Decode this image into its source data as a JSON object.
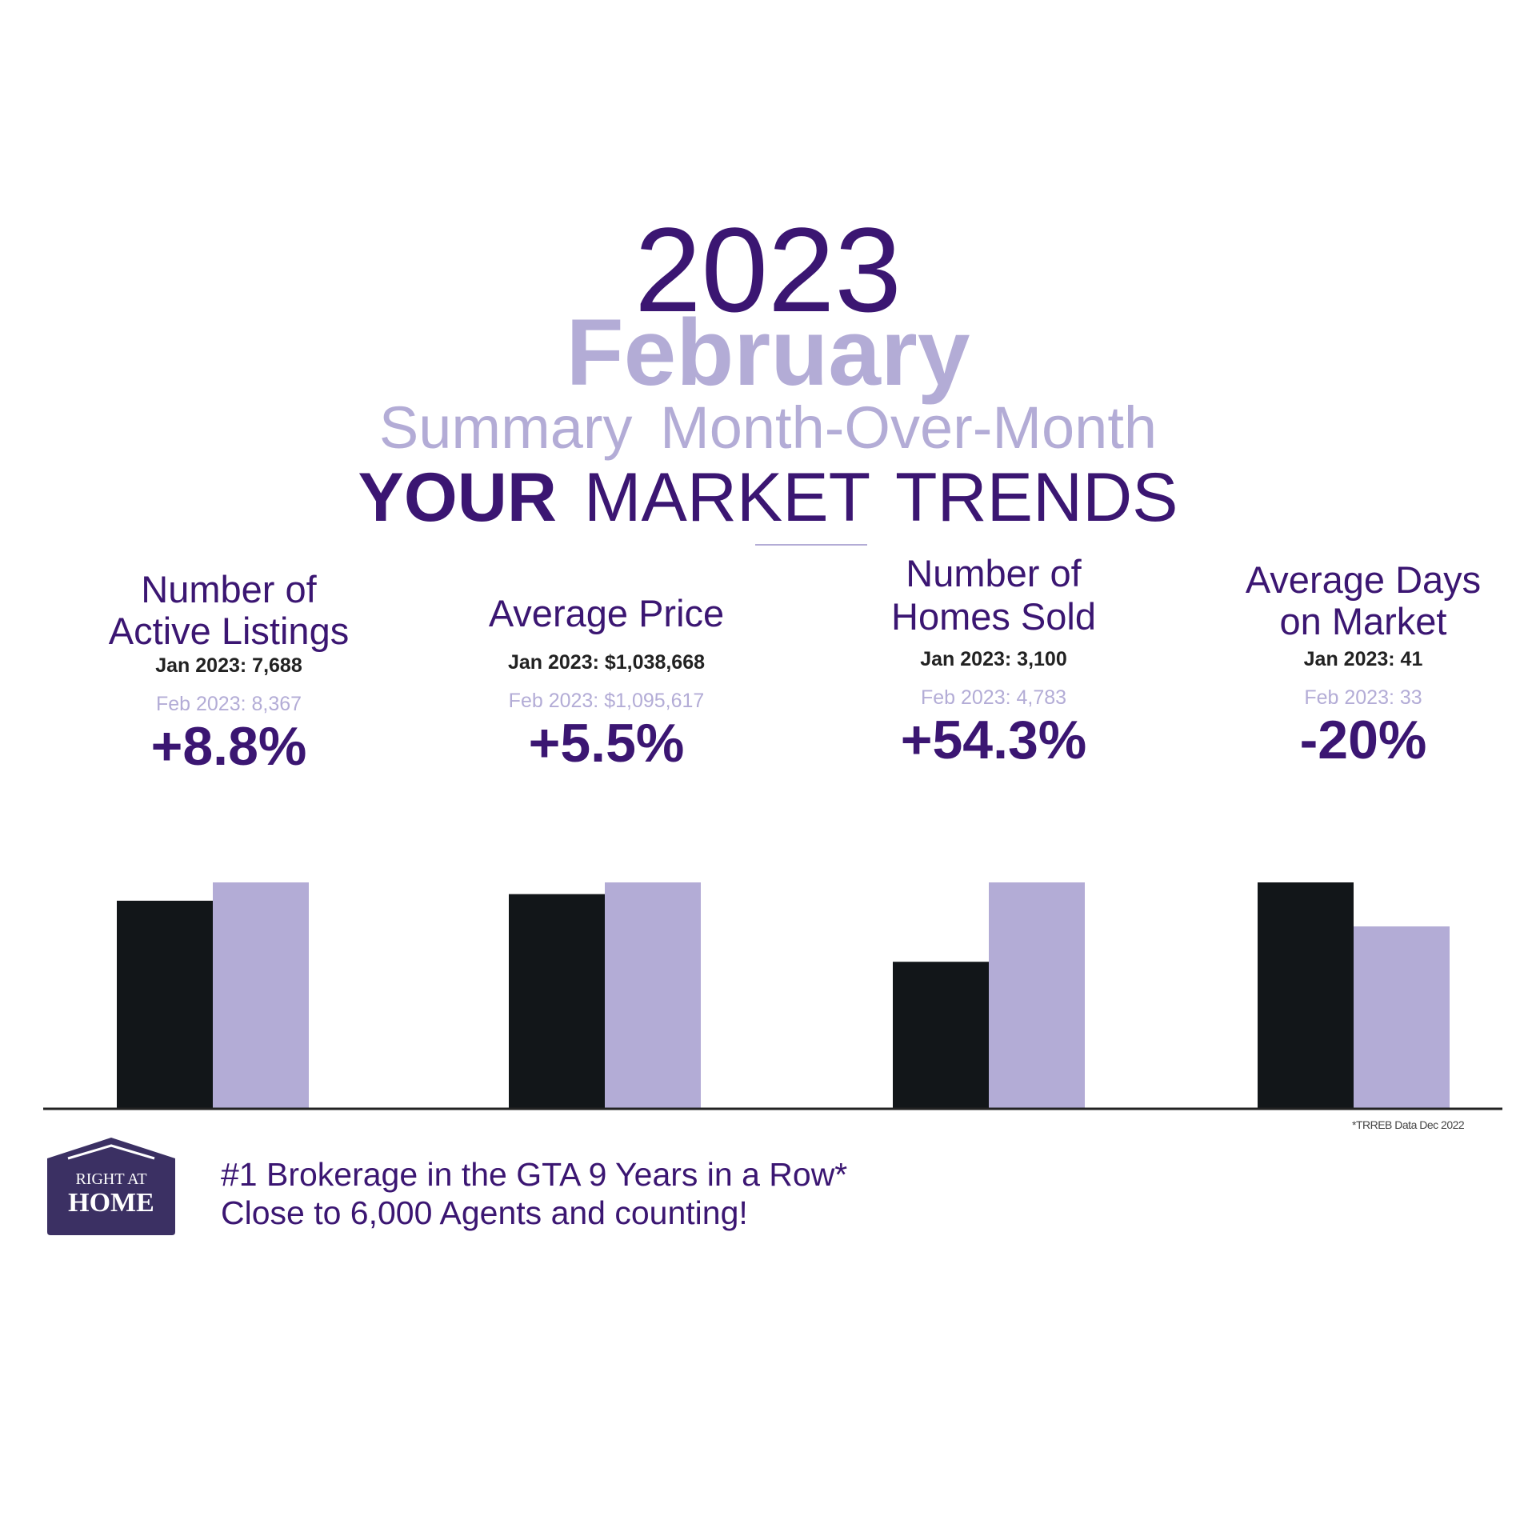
{
  "header": {
    "year": "2023",
    "month": "February",
    "summary": "Summary  Month-Over-Month",
    "trends_bold": "YOUR",
    "trends_rest": " MARKET TRENDS"
  },
  "metrics": [
    {
      "name_line1": "Number of",
      "name_line2": "Active Listings",
      "jan": "Jan 2023: 7,688",
      "feb": "Feb 2023: 8,367",
      "change": "+8.8%"
    },
    {
      "name_line1": "Average Price",
      "name_line2": "",
      "jan": "Jan 2023: $1,038,668",
      "feb": "Feb 2023: $1,095,617",
      "change": "+5.5%"
    },
    {
      "name_line1": "Number of",
      "name_line2": "Homes Sold",
      "jan": "Jan 2023: 3,100",
      "feb": "Feb 2023: 4,783",
      "change": "+54.3%"
    },
    {
      "name_line1": "Average Days",
      "name_line2": "on Market",
      "jan": "Jan 2023: 41",
      "feb": "Feb 2023: 33",
      "change": "-20%"
    }
  ],
  "chart_data": {
    "type": "bar",
    "categories": [
      "Number of Active Listings",
      "Average Price",
      "Number of Homes Sold",
      "Average Days on Market"
    ],
    "series": [
      {
        "values": [
          7688,
          1038668,
          3100,
          41
        ],
        "color": "#121619"
      },
      {
        "values": [
          8367,
          1095617,
          4783,
          33
        ],
        "color": "#b3acd6"
      }
    ],
    "note": "each group scaled independently"
  },
  "footnote": "*TRREB Data Dec 2022",
  "logo": {
    "line1": "RIGHT AT",
    "line2": "HOME",
    "color": "#3b3063"
  },
  "tagline": {
    "line1": "#1 Brokerage in the GTA 9 Years in a Row*",
    "line2": "Close to 6,000 Agents and counting!"
  }
}
